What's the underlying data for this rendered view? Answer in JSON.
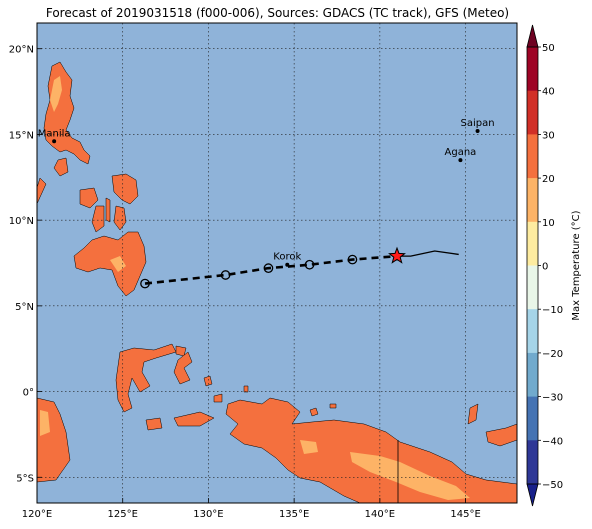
{
  "title": "Forecast of 2019031518 (f000-006), Sources: GDACS (TC track), GFS (Meteo)",
  "map": {
    "lon_range": [
      120,
      148
    ],
    "lat_range": [
      -6.5,
      21.5
    ],
    "ocean_color": "#8fb3d9",
    "land_color": "#f4703e",
    "x_ticks": [
      {
        "value": 120,
        "label": "120°E"
      },
      {
        "value": 125,
        "label": "125°E"
      },
      {
        "value": 130,
        "label": "130°E"
      },
      {
        "value": 135,
        "label": "135°E"
      },
      {
        "value": 140,
        "label": "140°E"
      },
      {
        "value": 145,
        "label": "145°E"
      }
    ],
    "y_ticks": [
      {
        "value": 20,
        "label": "20°N"
      },
      {
        "value": 15,
        "label": "15°N"
      },
      {
        "value": 10,
        "label": "10°N"
      },
      {
        "value": 5,
        "label": "5°N"
      },
      {
        "value": 0,
        "label": "0°"
      },
      {
        "value": -5,
        "label": "5°S"
      }
    ],
    "cities": [
      {
        "name": "Manila",
        "lon": 121.0,
        "lat": 14.6
      },
      {
        "name": "Saipan",
        "lon": 145.7,
        "lat": 15.2
      },
      {
        "name": "Agana",
        "lon": 144.7,
        "lat": 13.5
      },
      {
        "name": "Korok",
        "lon": 134.6,
        "lat": 7.4
      }
    ],
    "forecast_track": [
      {
        "lon": 126.3,
        "lat": 6.3
      },
      {
        "lon": 131.0,
        "lat": 6.8
      },
      {
        "lon": 133.5,
        "lat": 7.2
      },
      {
        "lon": 135.9,
        "lat": 7.4
      },
      {
        "lon": 138.4,
        "lat": 7.7
      },
      {
        "lon": 141.0,
        "lat": 7.9
      }
    ],
    "past_track": [
      {
        "lon": 141.0,
        "lat": 7.9
      },
      {
        "lon": 141.8,
        "lat": 7.9
      },
      {
        "lon": 143.2,
        "lat": 8.2
      },
      {
        "lon": 144.6,
        "lat": 8.0
      }
    ],
    "current_position": {
      "lon": 141.0,
      "lat": 7.9
    }
  },
  "colorbar": {
    "label": "Max Temperature (°C)",
    "ticks": [
      "50",
      "40",
      "30",
      "20",
      "10",
      "0",
      "−10",
      "−20",
      "−30",
      "−40",
      "−50"
    ],
    "colors": [
      "#9e0426",
      "#d12f27",
      "#f4703e",
      "#fdb366",
      "#feeca0",
      "#e9f6e8",
      "#a5d4e8",
      "#71aacd",
      "#4573b3",
      "#2e3796"
    ],
    "top_arrow_color": "#6e0222",
    "bottom_arrow_color": "#18208a"
  }
}
